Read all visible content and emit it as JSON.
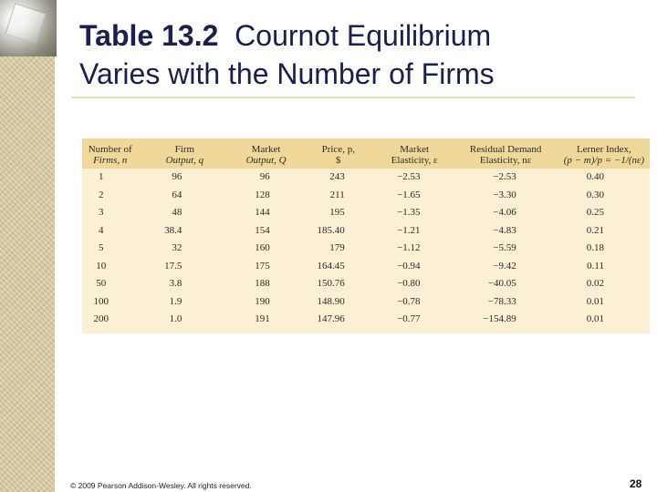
{
  "title": {
    "bold": "Table 13.2",
    "rest_line1": "Cournot Equilibrium",
    "line2": "Varies with the Number of Firms"
  },
  "table": {
    "headers": [
      [
        "Number of",
        "Firms, n"
      ],
      [
        "Firm",
        "Output, q"
      ],
      [
        "Market",
        "Output, Q"
      ],
      [
        "Price, p,",
        "$"
      ],
      [
        "Market",
        "Elasticity, ε"
      ],
      [
        "Residual Demand",
        "Elasticity, nε"
      ],
      [
        "Lerner Index,",
        "(p − m)/p = −1/(nε)"
      ]
    ],
    "rows": [
      [
        "1",
        "96",
        "96",
        "243",
        "−2.53",
        "−2.53",
        "0.40"
      ],
      [
        "2",
        "64",
        "128",
        "211",
        "−1.65",
        "−3.30",
        "0.30"
      ],
      [
        "3",
        "48",
        "144",
        "195",
        "−1.35",
        "−4.06",
        "0.25"
      ],
      [
        "4",
        "38.4",
        "154",
        "185.40",
        "−1.21",
        "−4.83",
        "0.21"
      ],
      [
        "5",
        "32",
        "160",
        "179",
        "−1.12",
        "−5.59",
        "0.18"
      ],
      [
        "10",
        "17.5",
        "175",
        "164.45",
        "−0.94",
        "−9.42",
        "0.11"
      ],
      [
        "50",
        "3.8",
        "188",
        "150.76",
        "−0.80",
        "−40.05",
        "0.02"
      ],
      [
        "100",
        "1.9",
        "190",
        "148.90",
        "−0.78",
        "−78.33",
        "0.01"
      ],
      [
        "200",
        "1.0",
        "191",
        "147.96",
        "−0.77",
        "−154.89",
        "0.01"
      ]
    ]
  },
  "footer": "© 2009 Pearson Addison-Wesley. All rights reserved.",
  "page_number": "28",
  "colors": {
    "title": "#1a1f4d",
    "header_band": "#efd89a",
    "table_body": "#fbf0d4",
    "rule": "#e6dfb4",
    "left_strip": "#d8cda0"
  }
}
